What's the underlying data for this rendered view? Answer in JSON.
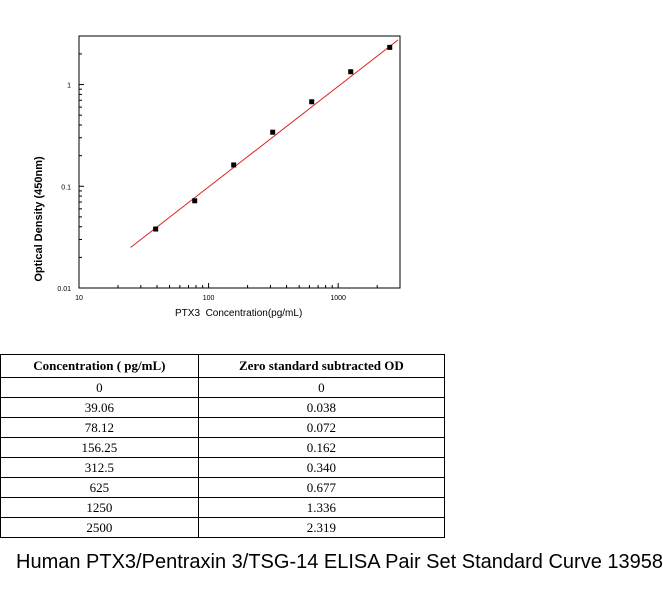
{
  "chart_data": {
    "type": "scatter",
    "xlabel": "PTX3  Concentration(pg/mL)",
    "ylabel": "Optical Density (450nm)",
    "x_scale": "log",
    "y_scale": "log",
    "xlim": [
      10,
      3000
    ],
    "ylim": [
      0.01,
      3
    ],
    "x_ticks": [
      10,
      100,
      1000
    ],
    "x_tick_labels": [
      "10",
      "100",
      "1000"
    ],
    "y_ticks": [
      0.01,
      0.1,
      1
    ],
    "y_tick_labels": [
      "0.01",
      "0.1",
      "1"
    ],
    "x": [
      39.06,
      78.12,
      156.25,
      312.5,
      625,
      1250,
      2500
    ],
    "y": [
      0.038,
      0.072,
      0.162,
      0.34,
      0.677,
      1.336,
      2.319
    ],
    "fit_line": {
      "x": [
        25,
        2900
      ],
      "y": [
        0.025,
        2.75
      ],
      "color": "#dd2222"
    },
    "marker_color": "#000000"
  },
  "table": {
    "headers": [
      "Concentration ( pg/mL)",
      "Zero standard subtracted OD"
    ],
    "rows": [
      [
        "0",
        "0"
      ],
      [
        "39.06",
        "0.038"
      ],
      [
        "78.12",
        "0.072"
      ],
      [
        "156.25",
        "0.162"
      ],
      [
        "312.5",
        "0.340"
      ],
      [
        "625",
        "0.677"
      ],
      [
        "1250",
        "1.336"
      ],
      [
        "2500",
        "2.319"
      ]
    ]
  },
  "caption": "Human PTX3/Pentraxin 3/TSG-14 ELISA Pair Set Standard Curve 13958"
}
